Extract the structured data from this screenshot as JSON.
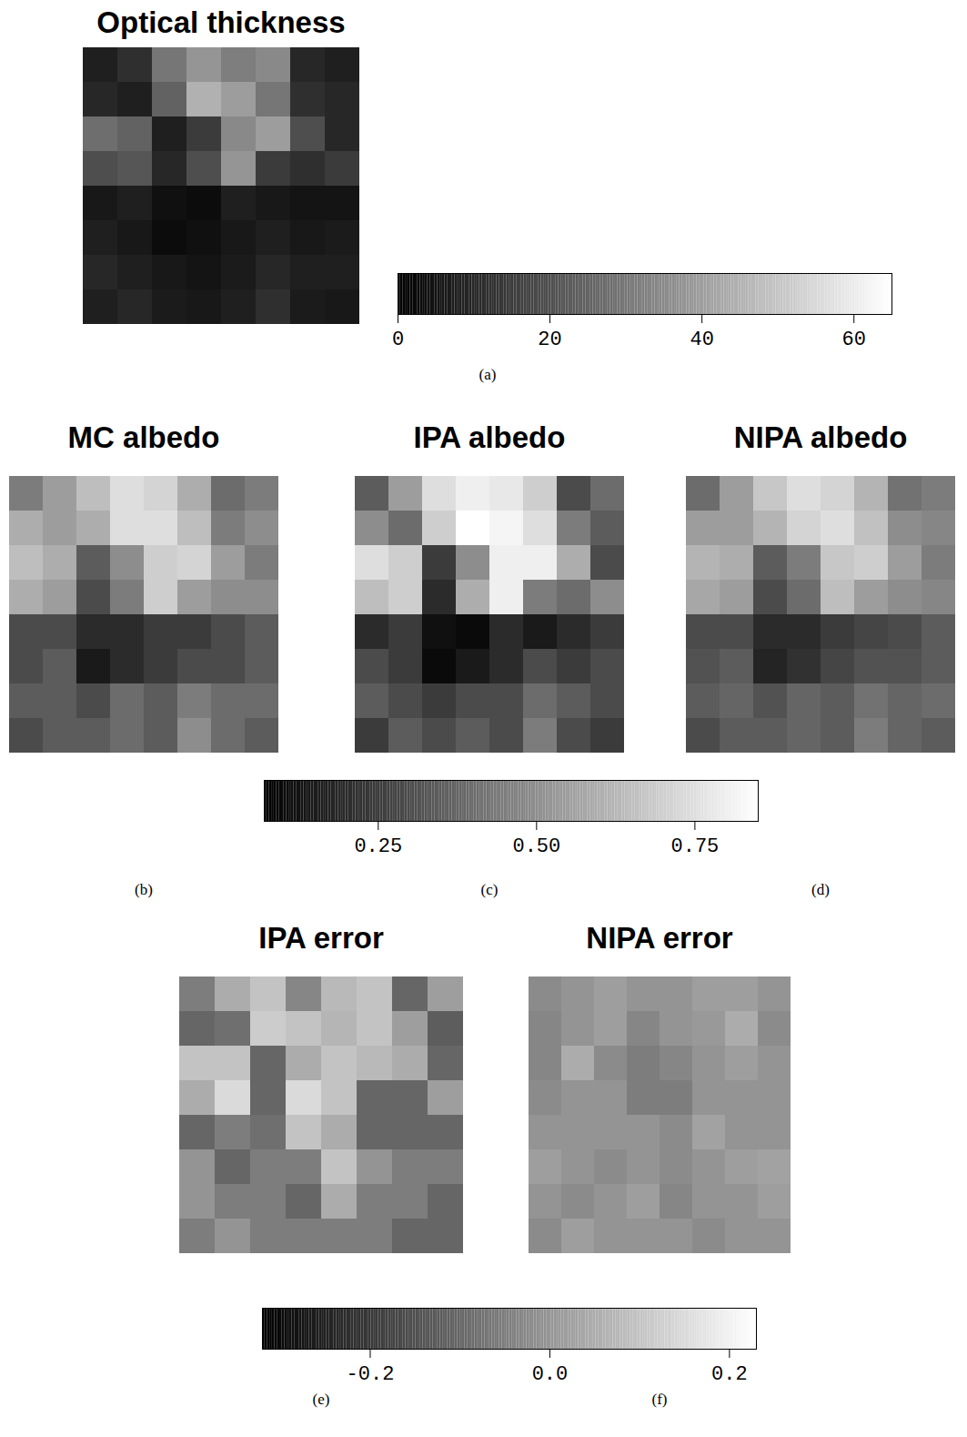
{
  "chart_data": [
    {
      "type": "heatmap",
      "tick_labels": false,
      "panels": [
        {
          "title": "Optical thickness",
          "caption": "(a)",
          "cells": [
            [
              8,
              12,
              30,
              38,
              32,
              35,
              10,
              8
            ],
            [
              10,
              8,
              25,
              45,
              40,
              30,
              12,
              10
            ],
            [
              28,
              25,
              8,
              15,
              35,
              40,
              20,
              10
            ],
            [
              20,
              22,
              10,
              20,
              38,
              15,
              12,
              15
            ],
            [
              6,
              8,
              4,
              3,
              8,
              6,
              5,
              5
            ],
            [
              8,
              6,
              3,
              4,
              6,
              8,
              6,
              7
            ],
            [
              10,
              8,
              6,
              5,
              7,
              10,
              8,
              8
            ],
            [
              8,
              10,
              7,
              6,
              8,
              12,
              7,
              6
            ]
          ]
        }
      ],
      "colorbar": {
        "range": [
          0,
          65
        ],
        "ticks": [
          0,
          20,
          40,
          60
        ]
      }
    },
    {
      "type": "heatmap",
      "tick_labels": false,
      "panels": [
        {
          "title": "MC albedo",
          "caption": "(b)",
          "cells": [
            [
              0.45,
              0.55,
              0.65,
              0.75,
              0.72,
              0.6,
              0.4,
              0.45
            ],
            [
              0.6,
              0.55,
              0.6,
              0.75,
              0.75,
              0.65,
              0.45,
              0.5
            ],
            [
              0.65,
              0.6,
              0.35,
              0.5,
              0.7,
              0.72,
              0.55,
              0.45
            ],
            [
              0.6,
              0.55,
              0.3,
              0.45,
              0.7,
              0.55,
              0.5,
              0.5
            ],
            [
              0.3,
              0.3,
              0.2,
              0.2,
              0.25,
              0.25,
              0.3,
              0.35
            ],
            [
              0.3,
              0.35,
              0.15,
              0.2,
              0.25,
              0.3,
              0.3,
              0.35
            ],
            [
              0.35,
              0.35,
              0.3,
              0.4,
              0.35,
              0.45,
              0.4,
              0.4
            ],
            [
              0.3,
              0.35,
              0.35,
              0.4,
              0.35,
              0.5,
              0.4,
              0.35
            ]
          ]
        },
        {
          "title": "IPA albedo",
          "caption": "(c)",
          "cells": [
            [
              0.35,
              0.55,
              0.75,
              0.8,
              0.78,
              0.7,
              0.3,
              0.4
            ],
            [
              0.5,
              0.4,
              0.7,
              0.85,
              0.82,
              0.75,
              0.45,
              0.35
            ],
            [
              0.75,
              0.7,
              0.25,
              0.5,
              0.8,
              0.8,
              0.6,
              0.3
            ],
            [
              0.65,
              0.7,
              0.2,
              0.6,
              0.8,
              0.45,
              0.4,
              0.5
            ],
            [
              0.2,
              0.25,
              0.12,
              0.1,
              0.2,
              0.15,
              0.2,
              0.25
            ],
            [
              0.3,
              0.25,
              0.1,
              0.15,
              0.2,
              0.3,
              0.25,
              0.3
            ],
            [
              0.35,
              0.3,
              0.25,
              0.3,
              0.3,
              0.4,
              0.35,
              0.3
            ],
            [
              0.25,
              0.35,
              0.3,
              0.35,
              0.3,
              0.45,
              0.3,
              0.25
            ]
          ]
        },
        {
          "title": "NIPA albedo",
          "caption": "(d)",
          "cells": [
            [
              0.4,
              0.55,
              0.68,
              0.75,
              0.72,
              0.62,
              0.42,
              0.45
            ],
            [
              0.55,
              0.55,
              0.62,
              0.72,
              0.75,
              0.66,
              0.5,
              0.48
            ],
            [
              0.62,
              0.6,
              0.35,
              0.45,
              0.68,
              0.7,
              0.55,
              0.45
            ],
            [
              0.58,
              0.55,
              0.3,
              0.4,
              0.65,
              0.55,
              0.5,
              0.48
            ],
            [
              0.3,
              0.3,
              0.2,
              0.2,
              0.25,
              0.28,
              0.3,
              0.35
            ],
            [
              0.32,
              0.35,
              0.18,
              0.22,
              0.28,
              0.32,
              0.32,
              0.35
            ],
            [
              0.35,
              0.38,
              0.32,
              0.38,
              0.35,
              0.42,
              0.38,
              0.4
            ],
            [
              0.3,
              0.35,
              0.35,
              0.38,
              0.35,
              0.45,
              0.38,
              0.35
            ]
          ]
        }
      ],
      "colorbar": {
        "range": [
          0.07,
          0.85
        ],
        "ticks": [
          0.25,
          {
            "value": 0.5,
            "label": "0.50"
          },
          0.75
        ]
      }
    },
    {
      "type": "heatmap",
      "tick_labels": false,
      "panels": [
        {
          "title": "IPA error",
          "caption": "(e)",
          "cells": [
            [
              -0.05,
              0.05,
              0.1,
              -0.03,
              0.08,
              0.1,
              -0.1,
              0.02
            ],
            [
              -0.1,
              -0.08,
              0.12,
              0.1,
              0.07,
              0.1,
              0.02,
              -0.12
            ],
            [
              0.1,
              0.1,
              -0.1,
              0.05,
              0.1,
              0.08,
              0.05,
              -0.1
            ],
            [
              0.05,
              0.15,
              -0.1,
              0.15,
              0.1,
              -0.1,
              -0.1,
              0.02
            ],
            [
              -0.1,
              -0.05,
              -0.08,
              0.1,
              0.05,
              -0.1,
              -0.1,
              -0.1
            ],
            [
              0.0,
              -0.1,
              -0.05,
              -0.05,
              0.1,
              0.0,
              -0.05,
              -0.05
            ],
            [
              0.0,
              -0.05,
              -0.05,
              -0.1,
              0.05,
              -0.05,
              -0.05,
              -0.1
            ],
            [
              -0.05,
              0.0,
              -0.05,
              -0.05,
              -0.05,
              -0.05,
              -0.1,
              -0.1
            ]
          ]
        },
        {
          "title": "NIPA error",
          "caption": "(f)",
          "cells": [
            [
              -0.02,
              0,
              0.02,
              0,
              0,
              0.02,
              0.02,
              0
            ],
            [
              -0.03,
              0,
              0.02,
              -0.03,
              0,
              0.01,
              0.05,
              -0.02
            ],
            [
              -0.03,
              0.05,
              -0.02,
              -0.05,
              -0.03,
              0,
              0.02,
              0
            ],
            [
              -0.02,
              0,
              0,
              -0.05,
              -0.05,
              0,
              0,
              0
            ],
            [
              0,
              0,
              0,
              0,
              -0.02,
              0.03,
              0,
              0
            ],
            [
              0.02,
              0,
              -0.02,
              0,
              -0.02,
              0,
              0.02,
              0.03
            ],
            [
              0,
              -0.02,
              0,
              0.02,
              -0.03,
              0,
              0,
              0.02
            ],
            [
              -0.02,
              0.02,
              0,
              0,
              0,
              -0.02,
              0,
              0
            ]
          ]
        }
      ],
      "colorbar": {
        "range": [
          -0.32,
          0.23
        ],
        "ticks": [
          -0.2,
          {
            "value": 0,
            "label": "0.0"
          },
          0.2
        ]
      }
    }
  ]
}
